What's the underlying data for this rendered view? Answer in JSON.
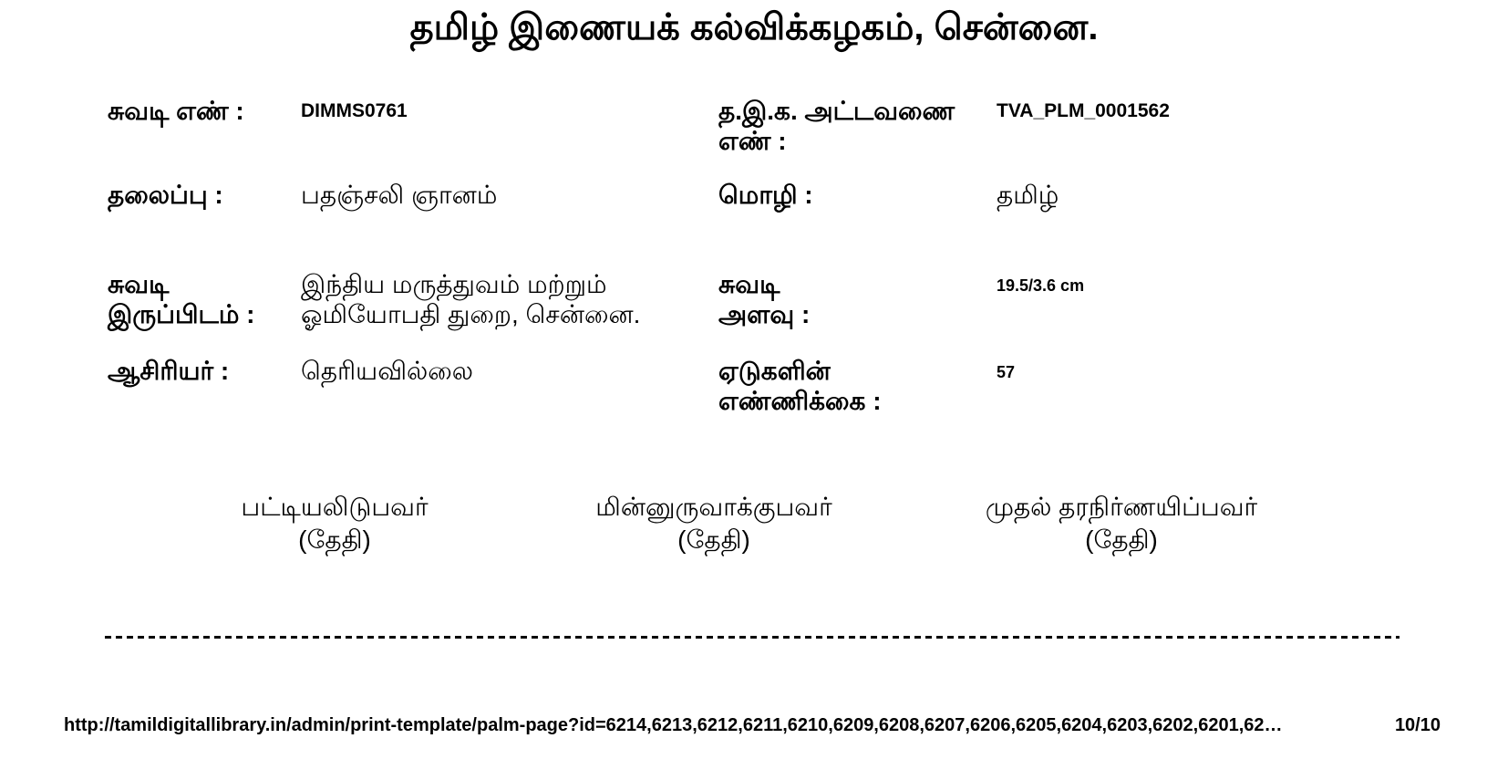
{
  "title": "தமிழ் இணையக் கல்விக்கழகம், சென்னை.",
  "rows": [
    {
      "left": {
        "label": "சுவடி எண் :",
        "value": "DIMMS0761"
      },
      "right": {
        "label": "த.இ.க. அட்டவணை\nஎண் :",
        "value": "TVA_PLM_0001562"
      }
    },
    {
      "left": {
        "label": "தலைப்பு :",
        "value": "பதஞ்சலி ஞானம்"
      },
      "right": {
        "label": "மொழி :",
        "value": "தமிழ்"
      }
    },
    {
      "left": {
        "label": "சுவடி\nஇருப்பிடம் :",
        "value": "இந்திய மருத்துவம் மற்றும்\nஓமியோபதி துறை, சென்னை."
      },
      "right": {
        "label": "சுவடி\nஅளவு :",
        "value": "19.5/3.6 cm"
      }
    },
    {
      "left": {
        "label": "ஆசிரியர் :",
        "value": "தெரியவில்லை"
      },
      "right": {
        "label": "ஏடுகளின்\nஎண்ணிக்கை :",
        "value": "57"
      }
    }
  ],
  "signatures": [
    {
      "role": "பட்டியலிடுபவர்",
      "date": "(தேதி)"
    },
    {
      "role": "மின்னுருவாக்குபவர்",
      "date": "(தேதி)"
    },
    {
      "role": "முதல் தரநிர்ணயிப்பவர்",
      "date": "(தேதி)"
    }
  ],
  "footer": {
    "url": "http://tamildigitallibrary.in/admin/print-template/palm-page?id=6214,6213,6212,6211,6210,6209,6208,6207,6206,6205,6204,6203,6202,6201,62…",
    "page": "10/10"
  },
  "colors": {
    "text": "#000000",
    "background": "#ffffff"
  }
}
